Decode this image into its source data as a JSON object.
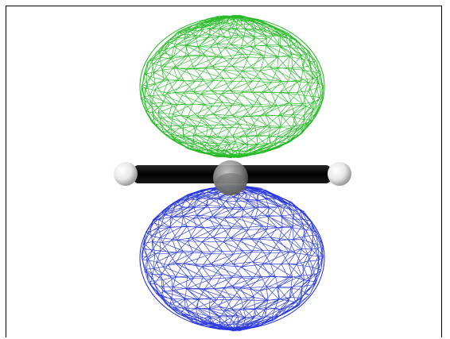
{
  "scene": {
    "background_color": "#ffffff",
    "frame_color": "#000000",
    "upper_lobe": {
      "mesh_color": "#19b619",
      "style": "wireframe"
    },
    "lower_lobe": {
      "mesh_color": "#1a2ad8",
      "style": "wireframe"
    },
    "bond_color": "#050505",
    "central_atom": {
      "color": "#9a9a9a"
    },
    "terminal_atoms": {
      "color": "#ececec",
      "count": 2
    }
  }
}
